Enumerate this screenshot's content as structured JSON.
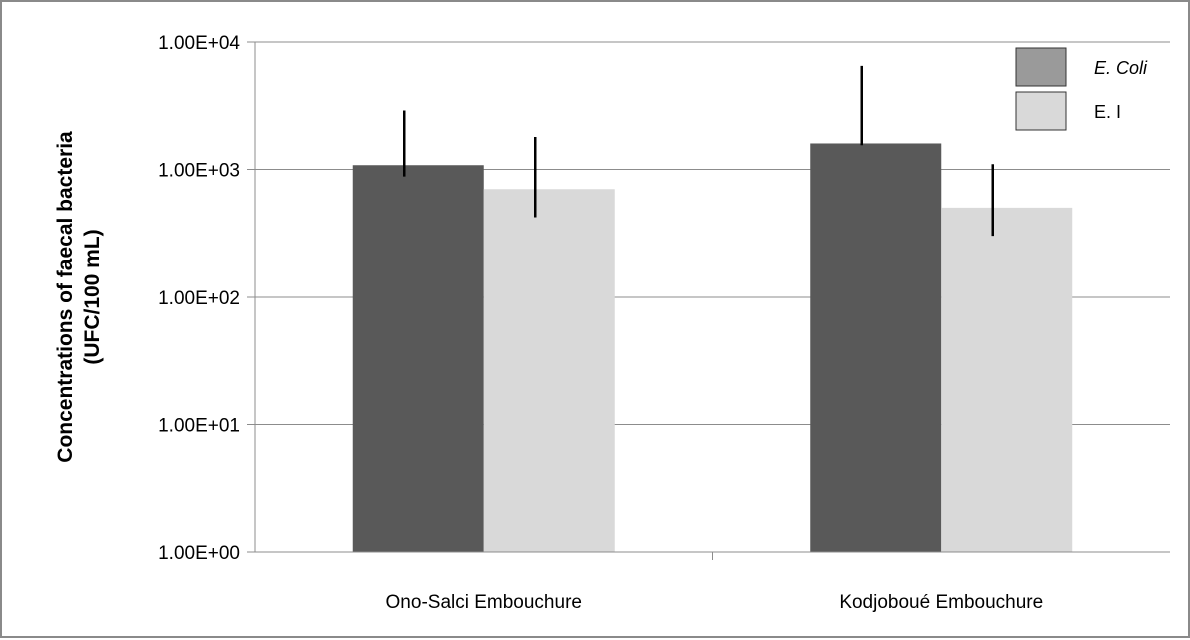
{
  "chart_data": {
    "type": "bar",
    "scale": "log",
    "ylabel_line1": "Concentrations of faecal bacteria",
    "ylabel_line2": "(UFC/100 mL)",
    "xlabel": "",
    "categories": [
      "Ono-Salci Embouchure",
      "Kodjoboué Embouchure"
    ],
    "series": [
      {
        "name": "E. Coli",
        "color": "#595959",
        "italic": true,
        "values": [
          1080,
          1600
        ],
        "error_low": [
          880,
          1550
        ],
        "error_high": [
          2900,
          6500
        ]
      },
      {
        "name": "E. I",
        "color": "#d9d9d9",
        "italic": false,
        "values": [
          700,
          500
        ],
        "error_low": [
          420,
          300
        ],
        "error_high": [
          1800,
          1100
        ]
      }
    ],
    "ylim": [
      1,
      10000
    ],
    "y_ticks": [
      {
        "value": 1,
        "label": "1.00E+00"
      },
      {
        "value": 10,
        "label": "1.00E+01"
      },
      {
        "value": 100,
        "label": "1.00E+02"
      },
      {
        "value": 1000,
        "label": "1.00E+03"
      },
      {
        "value": 10000,
        "label": "1.00E+04"
      }
    ],
    "grid": true,
    "legend_position": "top-right"
  }
}
